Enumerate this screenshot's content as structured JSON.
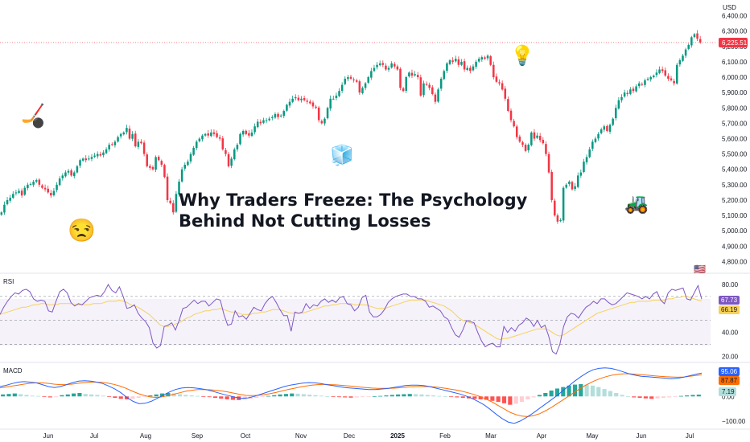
{
  "header": {
    "currency": "USD"
  },
  "title": {
    "line1": "Why Traders Freeze: The Psychology",
    "line2": "Behind Not Cutting Losses"
  },
  "emojis": {
    "hockey": "🏒",
    "puck": "⚫",
    "unamused": "😒",
    "ice": "🧊",
    "bulb": "💡",
    "tractor": "🚜",
    "flag": "🇺🇸"
  },
  "colors": {
    "up": "#089981",
    "down": "#f23645",
    "rsi": "#7e57c2",
    "rsi_ma": "#f7d158",
    "macd": "#2962ff",
    "signal": "#ff6d00",
    "price_line": "#f23645"
  },
  "chart_data": [
    {
      "type": "candlestick",
      "title": "",
      "currency": "USD",
      "last_price": "6,225.51",
      "ylim": [
        4750,
        6450
      ],
      "yticks": [
        "6,400.00",
        "6,300.00",
        "6,200.00",
        "6,100.00",
        "6,000.00",
        "5,900.00",
        "5,800.00",
        "5,700.00",
        "5,600.00",
        "5,500.00",
        "5,400.00",
        "5,300.00",
        "5,200.00",
        "5,100.00",
        "5,000.00",
        "4,900.00",
        "4,800.00"
      ],
      "xticks": [
        "Jun",
        "Jul",
        "Aug",
        "Sep",
        "Oct",
        "Nov",
        "Dec",
        "2025",
        "Feb",
        "Mar",
        "Apr",
        "May",
        "Jun",
        "Jul"
      ],
      "series": [
        {
          "values": [
            5120,
            5170,
            5200,
            5215,
            5240,
            5250,
            5260,
            5230,
            5280,
            5300,
            5305,
            5320,
            5330,
            5300,
            5280,
            5270,
            5250,
            5230,
            5260,
            5300,
            5340,
            5360,
            5380,
            5390,
            5360,
            5380,
            5420,
            5460,
            5470,
            5460,
            5470,
            5480,
            5490,
            5500,
            5490,
            5510,
            5530,
            5560,
            5560,
            5580,
            5610,
            5630,
            5640,
            5670,
            5600,
            5630,
            5550,
            5580,
            5570,
            5500,
            5420,
            5410,
            5400,
            5480,
            5460,
            5430,
            5350,
            5200,
            5180,
            5120,
            5240,
            5320,
            5400,
            5430,
            5450,
            5500,
            5540,
            5580,
            5600,
            5620,
            5630,
            5620,
            5640,
            5630,
            5610,
            5600,
            5530,
            5500,
            5420,
            5470,
            5530,
            5560,
            5630,
            5650,
            5630,
            5620,
            5640,
            5680,
            5710,
            5700,
            5720,
            5720,
            5730,
            5740,
            5760,
            5740,
            5750,
            5780,
            5820,
            5840,
            5860,
            5870,
            5850,
            5860,
            5850,
            5840,
            5830,
            5810,
            5800,
            5720,
            5700,
            5730,
            5800,
            5860,
            5860,
            5880,
            5910,
            5950,
            5990,
            6000,
            5990,
            5980,
            5970,
            5900,
            5930,
            5960,
            6000,
            6040,
            6060,
            6080,
            6090,
            6080,
            6050,
            6060,
            6090,
            6070,
            6050,
            5930,
            5910,
            6000,
            6030,
            6010,
            6020,
            6000,
            5880,
            5960,
            5950,
            5930,
            5890,
            5840,
            5920,
            5990,
            6040,
            6090,
            6110,
            6100,
            6120,
            6080,
            6100,
            6050,
            6060,
            6040,
            6070,
            6100,
            6120,
            6130,
            6120,
            6140,
            6080,
            6000,
            5970,
            5960,
            5920,
            5860,
            5780,
            5720,
            5680,
            5610,
            5580,
            5560,
            5520,
            5560,
            5640,
            5600,
            5620,
            5590,
            5570,
            5500,
            5380,
            5200,
            5100,
            5060,
            5070,
            5280,
            5300,
            5320,
            5270,
            5290,
            5360,
            5380,
            5450,
            5480,
            5530,
            5580,
            5600,
            5630,
            5660,
            5680,
            5650,
            5690,
            5730,
            5800,
            5850,
            5870,
            5900,
            5890,
            5920,
            5910,
            5940,
            5960,
            5950,
            5980,
            5990,
            6000,
            6010,
            6030,
            6050,
            6040,
            6010,
            5990,
            5980,
            5960,
            6080,
            6110,
            6140,
            6180,
            6210,
            6260,
            6280,
            6250,
            6225.51
          ]
        }
      ]
    },
    {
      "type": "line",
      "title": "RSI",
      "ylim": [
        17,
        86
      ],
      "yticks": [
        "80.00",
        "40.00",
        "20.00"
      ],
      "bands": [
        70,
        50,
        30
      ],
      "labels": {
        "rsi": "67.73",
        "rsi_ma": "66.19"
      },
      "series": [
        {
          "values": [
            55,
            61,
            66,
            70,
            73,
            72,
            75,
            76,
            74,
            68,
            66,
            67,
            66,
            58,
            57,
            66,
            74,
            76,
            73,
            65,
            62,
            64,
            63,
            66,
            69,
            70,
            71,
            70,
            74,
            80,
            75,
            73,
            78,
            70,
            60,
            61,
            63,
            56,
            52,
            49,
            44,
            31,
            27,
            29,
            45,
            46,
            48,
            42,
            50,
            60,
            61,
            64,
            67,
            64,
            66,
            66,
            62,
            65,
            68,
            67,
            55,
            46,
            47,
            58,
            53,
            54,
            51,
            56,
            61,
            59,
            58,
            64,
            68,
            70,
            65,
            59,
            54,
            54,
            41,
            57,
            56,
            57,
            64,
            60,
            63,
            62,
            66,
            68,
            65,
            67,
            65,
            69,
            70,
            64,
            63,
            58,
            61,
            69,
            71,
            57,
            53,
            53,
            55,
            59,
            65,
            68,
            70,
            71,
            72,
            72,
            70,
            70,
            68,
            68,
            66,
            61,
            62,
            60,
            58,
            53,
            51,
            44,
            38,
            36,
            42,
            50,
            49,
            48,
            40,
            33,
            28,
            30,
            31,
            28,
            28,
            45,
            40,
            44,
            41,
            46,
            48,
            52,
            50,
            45,
            50,
            44,
            46,
            37,
            24,
            22,
            30,
            45,
            53,
            56,
            55,
            52,
            57,
            61,
            63,
            66,
            64,
            68,
            68,
            65,
            63,
            64,
            67,
            70,
            73,
            72,
            71,
            70,
            68,
            70,
            68,
            72,
            74,
            67,
            64,
            73,
            76,
            75,
            76,
            77,
            68,
            67,
            73,
            79,
            67.73
          ]
        },
        {
          "values": [
            55,
            56,
            57,
            58,
            59,
            60,
            61,
            61,
            62,
            63,
            63,
            64,
            64,
            63,
            63,
            63,
            64,
            64,
            64,
            64,
            63,
            63,
            63,
            63,
            63,
            64,
            64,
            64,
            65,
            66,
            66,
            66,
            67,
            66,
            65,
            63,
            62,
            61,
            59,
            57,
            55,
            52,
            49,
            46,
            45,
            45,
            46,
            47,
            48,
            50,
            52,
            53,
            55,
            56,
            57,
            58,
            58,
            59,
            59,
            60,
            59,
            58,
            57,
            57,
            56,
            55,
            55,
            55,
            56,
            56,
            57,
            57,
            58,
            59,
            59,
            59,
            58,
            57,
            56,
            56,
            56,
            56,
            57,
            58,
            59,
            60,
            61,
            62,
            62,
            63,
            63,
            64,
            64,
            64,
            64,
            63,
            63,
            63,
            63,
            62,
            61,
            60,
            60,
            60,
            61,
            62,
            63,
            64,
            65,
            66,
            67,
            67,
            67,
            67,
            67,
            66,
            65,
            64,
            63,
            62,
            60,
            58,
            55,
            52,
            50,
            49,
            48,
            47,
            45,
            43,
            41,
            39,
            37,
            35,
            34,
            35,
            35,
            36,
            37,
            38,
            39,
            40,
            41,
            42,
            43,
            43,
            43,
            42,
            40,
            38,
            37,
            38,
            40,
            42,
            44,
            46,
            48,
            50,
            52,
            54,
            56,
            57,
            58,
            59,
            60,
            61,
            62,
            63,
            64,
            65,
            65,
            66,
            66,
            66,
            66,
            67,
            67,
            67,
            67,
            68,
            68,
            69,
            69,
            70,
            70,
            69,
            68,
            67,
            66.19
          ]
        }
      ]
    },
    {
      "type": "bar+line",
      "title": "MACD",
      "ylim": [
        -120,
        125
      ],
      "yticks": [
        "0.00",
        "−100.00"
      ],
      "labels": {
        "macd": "95.06",
        "signal": "87.87",
        "histogram": "7.19"
      },
      "series": [
        {
          "name": "histogram",
          "values": [
            8,
            10,
            12,
            9,
            6,
            3,
            2,
            -2,
            -4,
            -3,
            5,
            8,
            12,
            14,
            10,
            8,
            6,
            3,
            -2,
            -6,
            -10,
            -12,
            -10,
            -6,
            -2,
            4,
            8,
            12,
            14,
            12,
            9,
            6,
            4,
            2,
            -1,
            -3,
            -6,
            -9,
            -12,
            -14,
            -15,
            -13,
            -10,
            -6,
            -2,
            2,
            5,
            8,
            10,
            12,
            11,
            9,
            7,
            5,
            3,
            1,
            -1,
            -3,
            -4,
            -5,
            -4,
            -3,
            -2,
            0,
            2,
            4,
            6,
            8,
            9,
            10,
            9,
            8,
            6,
            4,
            2,
            0,
            -2,
            -4,
            -6,
            -8,
            -10,
            -12,
            -14,
            -18,
            -22,
            -28,
            -34,
            -30,
            -22,
            -12,
            -4,
            6,
            14,
            24,
            32,
            38,
            44,
            48,
            50,
            48,
            44,
            38,
            30,
            22,
            14,
            6,
            0,
            -4,
            -6,
            -8,
            -10,
            -8,
            -6,
            -4,
            -2,
            2,
            4,
            6,
            7.19
          ]
        },
        {
          "name": "macd",
          "values": [
            40,
            45,
            52,
            58,
            60,
            58,
            55,
            48,
            40,
            36,
            40,
            48,
            56,
            62,
            64,
            62,
            58,
            52,
            42,
            30,
            15,
            -5,
            -20,
            -30,
            -28,
            -20,
            -8,
            5,
            18,
            28,
            34,
            36,
            35,
            32,
            28,
            22,
            15,
            8,
            2,
            -4,
            -8,
            -6,
            0,
            8,
            16,
            24,
            32,
            40,
            46,
            50,
            54,
            56,
            55,
            52,
            48,
            44,
            40,
            36,
            34,
            32,
            30,
            28,
            28,
            30,
            32,
            36,
            40,
            44,
            46,
            46,
            44,
            40,
            34,
            28,
            22,
            16,
            10,
            2,
            -8,
            -20,
            -34,
            -52,
            -72,
            -90,
            -104,
            -110,
            -100,
            -86,
            -70,
            -52,
            -34,
            -16,
            2,
            22,
            42,
            62,
            80,
            96,
            108,
            114,
            116,
            114,
            108,
            100,
            92,
            86,
            82,
            80,
            78,
            76,
            74,
            72,
            74,
            78,
            84,
            90,
            95.06
          ]
        },
        {
          "name": "signal",
          "values": [
            35,
            38,
            42,
            46,
            50,
            53,
            55,
            55,
            53,
            50,
            48,
            48,
            50,
            53,
            56,
            58,
            58,
            57,
            54,
            49,
            42,
            33,
            22,
            12,
            4,
            -2,
            -4,
            -2,
            3,
            9,
            15,
            21,
            25,
            28,
            28,
            27,
            25,
            22,
            18,
            13,
            8,
            4,
            3,
            4,
            7,
            11,
            16,
            22,
            28,
            33,
            38,
            42,
            46,
            48,
            49,
            48,
            47,
            45,
            43,
            41,
            38,
            36,
            34,
            33,
            33,
            33,
            34,
            36,
            38,
            39,
            40,
            40,
            39,
            37,
            34,
            30,
            26,
            21,
            15,
            8,
            0,
            -10,
            -22,
            -36,
            -50,
            -64,
            -74,
            -80,
            -82,
            -78,
            -70,
            -58,
            -44,
            -28,
            -12,
            4,
            20,
            36,
            50,
            62,
            72,
            80,
            86,
            90,
            92,
            92,
            90,
            88,
            86,
            84,
            82,
            80,
            79,
            78,
            79,
            82,
            85,
            87.87
          ]
        }
      ]
    }
  ]
}
